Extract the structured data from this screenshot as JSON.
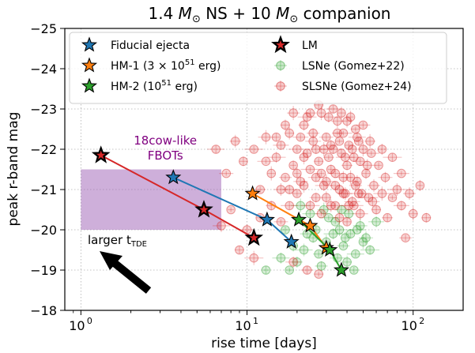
{
  "chart_data": {
    "type": "scatter",
    "title": "1.4 M_⊙ NS + 10 M_⊙ companion",
    "title_parts": [
      "1.4 ",
      "M",
      "⊙",
      " NS + 10 ",
      "M",
      "⊙",
      " companion"
    ],
    "xlabel": "rise time [days]",
    "ylabel": "peak r-band mag",
    "x_scale": "log",
    "xlim": [
      0.8,
      200
    ],
    "ylim": [
      -18,
      -25
    ],
    "x_ticks": [
      1,
      10,
      100
    ],
    "x_tick_labels": [
      "10",
      "10",
      "10"
    ],
    "x_tick_exponents": [
      "0",
      "1",
      "2"
    ],
    "y_ticks": [
      -18,
      -19,
      -20,
      -21,
      -22,
      -23,
      -24,
      -25
    ],
    "y_tick_labels": [
      "−18",
      "−19",
      "−20",
      "−21",
      "−22",
      "−23",
      "−24",
      "−25"
    ],
    "grid": true,
    "legend_position": "top-left",
    "legend": [
      {
        "label": "Fiducial ejecta",
        "marker": "star",
        "color": "#1f77b4"
      },
      {
        "label": "HM-1 (3 × 10",
        "sup": "51",
        "tail": " erg)",
        "marker": "star",
        "color": "#ff7f0e"
      },
      {
        "label": "HM-2 (10",
        "sup": "51",
        "tail": " erg)",
        "marker": "star",
        "color": "#2ca02c"
      },
      {
        "label": "LM",
        "marker": "star",
        "color": "#d62728",
        "edge": "#000000"
      },
      {
        "label": "LSNe (Gomez+22)",
        "marker": "circle",
        "color": "#2ca02c"
      },
      {
        "label": "SLSNe (Gomez+24)",
        "marker": "circle",
        "color": "#d62728"
      }
    ],
    "series": [
      {
        "name": "Fiducial ejecta",
        "color": "#1f77b4",
        "x": [
          3.6,
          13.2,
          18.5
        ],
        "y": [
          -21.3,
          -20.25,
          -19.7
        ]
      },
      {
        "name": "HM-1",
        "color": "#ff7f0e",
        "x": [
          10.8,
          24.0,
          30.0
        ],
        "y": [
          -20.9,
          -20.1,
          -19.55
        ]
      },
      {
        "name": "HM-2",
        "color": "#2ca02c",
        "x": [
          20.5,
          31.5,
          37.0
        ],
        "y": [
          -20.25,
          -19.5,
          -19.0
        ]
      },
      {
        "name": "LM",
        "color": "#d62728",
        "x": [
          1.32,
          5.5,
          11.0
        ],
        "y": [
          -21.85,
          -20.5,
          -19.8
        ]
      }
    ],
    "lsne_color": "#2ca02c",
    "slsne_color": "#d62728",
    "lsne_points": [
      [
        18,
        -19.0
      ],
      [
        22,
        -19.5
      ],
      [
        25,
        -19.8
      ],
      [
        27,
        -19.4
      ],
      [
        30,
        -19.7
      ],
      [
        33,
        -19.9
      ],
      [
        35,
        -19.3
      ],
      [
        38,
        -19.6
      ],
      [
        40,
        -19.2
      ],
      [
        42,
        -19.9
      ],
      [
        45,
        -19.4
      ],
      [
        48,
        -20.1
      ],
      [
        20,
        -19.2
      ],
      [
        26,
        -20.0
      ],
      [
        31,
        -20.3
      ],
      [
        36,
        -20.0
      ],
      [
        28,
        -19.1
      ],
      [
        44,
        -19.0
      ],
      [
        50,
        -19.7
      ],
      [
        16,
        -19.3
      ],
      [
        23,
        -19.9
      ],
      [
        34,
        -20.2
      ],
      [
        39,
        -19.8
      ],
      [
        55,
        -19.5
      ],
      [
        24,
        -20.4
      ],
      [
        29,
        -20.5
      ],
      [
        19,
        -19.6
      ],
      [
        13,
        -19.0
      ],
      [
        46,
        -20.0
      ],
      [
        52,
        -19.8
      ],
      [
        41,
        -20.4
      ],
      [
        17,
        -20.0
      ],
      [
        21,
        -20.6
      ],
      [
        60,
        -20.2
      ],
      [
        37,
        -20.5
      ]
    ],
    "slsne_points": [
      [
        12,
        -21.0
      ],
      [
        14,
        -21.4
      ],
      [
        15,
        -21.8
      ],
      [
        16,
        -22.1
      ],
      [
        17,
        -21.3
      ],
      [
        18,
        -22.4
      ],
      [
        19,
        -21.6
      ],
      [
        20,
        -22.0
      ],
      [
        21,
        -21.2
      ],
      [
        22,
        -22.6
      ],
      [
        23,
        -21.9
      ],
      [
        24,
        -21.5
      ],
      [
        25,
        -22.2
      ],
      [
        26,
        -20.8
      ],
      [
        27,
        -21.7
      ],
      [
        28,
        -22.9
      ],
      [
        29,
        -21.1
      ],
      [
        30,
        -22.3
      ],
      [
        31,
        -21.8
      ],
      [
        32,
        -20.6
      ],
      [
        33,
        -22.0
      ],
      [
        34,
        -21.4
      ],
      [
        35,
        -22.7
      ],
      [
        36,
        -21.0
      ],
      [
        37,
        -21.9
      ],
      [
        38,
        -22.4
      ],
      [
        39,
        -20.9
      ],
      [
        40,
        -21.6
      ],
      [
        41,
        -22.1
      ],
      [
        42,
        -21.3
      ],
      [
        43,
        -20.7
      ],
      [
        44,
        -21.8
      ],
      [
        45,
        -22.5
      ],
      [
        46,
        -21.2
      ],
      [
        47,
        -20.9
      ],
      [
        48,
        -21.7
      ],
      [
        50,
        -22.0
      ],
      [
        52,
        -21.4
      ],
      [
        54,
        -20.8
      ],
      [
        56,
        -21.9
      ],
      [
        58,
        -21.1
      ],
      [
        60,
        -20.5
      ],
      [
        62,
        -21.6
      ],
      [
        65,
        -20.9
      ],
      [
        68,
        -21.3
      ],
      [
        70,
        -20.3
      ],
      [
        75,
        -20.8
      ],
      [
        80,
        -21.0
      ],
      [
        85,
        -20.6
      ],
      [
        90,
        -19.8
      ],
      [
        100,
        -20.4
      ],
      [
        110,
        -21.1
      ],
      [
        6.5,
        -22.0
      ],
      [
        7.5,
        -21.4
      ],
      [
        8.5,
        -22.2
      ],
      [
        9.5,
        -21.7
      ],
      [
        11,
        -22.0
      ],
      [
        13,
        -22.3
      ],
      [
        10,
        -20.0
      ],
      [
        9,
        -19.5
      ],
      [
        8,
        -20.5
      ],
      [
        7,
        -20.1
      ],
      [
        18,
        -21.0
      ],
      [
        20,
        -20.9
      ],
      [
        22,
        -21.1
      ],
      [
        24,
        -20.6
      ],
      [
        26,
        -21.3
      ],
      [
        28,
        -20.4
      ],
      [
        30,
        -20.8
      ],
      [
        32,
        -21.5
      ],
      [
        34,
        -20.6
      ],
      [
        36,
        -20.3
      ],
      [
        38,
        -20.9
      ],
      [
        40,
        -20.2
      ],
      [
        44,
        -20.6
      ],
      [
        48,
        -20.4
      ],
      [
        25,
        -22.4
      ],
      [
        27,
        -23.1
      ],
      [
        29,
        -22.0
      ],
      [
        31,
        -22.8
      ],
      [
        33,
        -23.0
      ],
      [
        35,
        -22.4
      ],
      [
        37,
        -22.9
      ],
      [
        23,
        -22.8
      ],
      [
        21,
        -22.3
      ],
      [
        19,
        -22.9
      ],
      [
        17,
        -22.6
      ],
      [
        15,
        -22.3
      ],
      [
        13,
        -21.7
      ],
      [
        16,
        -21.0
      ],
      [
        14,
        -20.6
      ],
      [
        12,
        -20.3
      ],
      [
        11,
        -19.3
      ],
      [
        19,
        -19.2
      ],
      [
        23,
        -19.0
      ],
      [
        27,
        -18.9
      ],
      [
        42,
        -22.8
      ],
      [
        46,
        -22.3
      ],
      [
        50,
        -22.6
      ],
      [
        55,
        -22.2
      ],
      [
        65,
        -22.0
      ],
      [
        75,
        -21.8
      ],
      [
        85,
        -21.4
      ],
      [
        95,
        -20.9
      ],
      [
        120,
        -20.3
      ],
      [
        28,
        -21.4
      ],
      [
        30,
        -21.2
      ],
      [
        32,
        -22.1
      ],
      [
        34,
        -21.1
      ],
      [
        36,
        -22.2
      ],
      [
        38,
        -21.3
      ],
      [
        26,
        -22.0
      ],
      [
        24,
        -22.9
      ],
      [
        22,
        -21.8
      ],
      [
        20,
        -21.4
      ],
      [
        18,
        -20.6
      ],
      [
        16,
        -20.2
      ],
      [
        40,
        -22.7
      ],
      [
        43,
        -22.0
      ],
      [
        39,
        -21.8
      ],
      [
        41,
        -20.6
      ],
      [
        45,
        -21.1
      ],
      [
        47,
        -22.2
      ],
      [
        49,
        -20.9
      ],
      [
        53,
        -21.6
      ],
      [
        57,
        -20.7
      ]
    ],
    "shaded_region": {
      "label": "18cow-like\nFBOTs",
      "label_lines": [
        "18cow-like",
        "FBOTs"
      ],
      "x": [
        1.0,
        7.0
      ],
      "y": [
        -20.0,
        -21.5
      ],
      "color": "#9e5fb5"
    },
    "arrow_label": "larger t",
    "arrow_label_sub": "TDE"
  }
}
